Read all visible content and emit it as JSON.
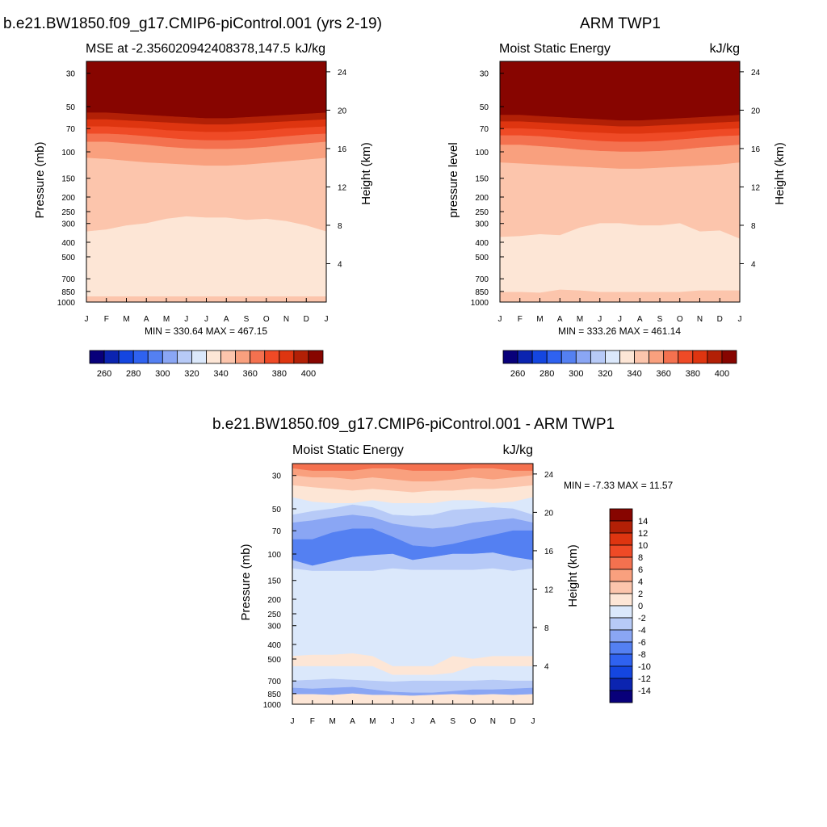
{
  "panels": {
    "model": {
      "title": "b.e21.BW1850.f09_g17.CMIP6-piControl.001 (yrs 2-19)",
      "left_string": "MSE at -2.356020942408378,147.5",
      "right_string": "kJ/kg",
      "min_max": "MIN = 330.64 MAX = 467.15"
    },
    "obs": {
      "title": "ARM TWP1",
      "left_string": "Moist Static Energy",
      "right_string": "kJ/kg",
      "min_max": "MIN = 333.26 MAX = 461.14"
    },
    "diff": {
      "title": "b.e21.BW1850.f09_g17.CMIP6-piControl.001 - ARM TWP1",
      "left_string": "Moist Static Energy",
      "right_string": "kJ/kg",
      "min_max": "MIN =  -7.33 MAX =  11.57"
    }
  },
  "chart_data": [
    {
      "type": "heatmap",
      "title": "b.e21.BW1850.f09_g17.CMIP6-piControl.001 (yrs 2-19)",
      "subtitle": "MSE at -2.356020942408378,147.5",
      "units": "kJ/kg",
      "xlabel": "",
      "ylabel": "Pressure (mb)",
      "y2label": "Height (km)",
      "x_ticks": [
        "J",
        "F",
        "M",
        "A",
        "M",
        "J",
        "J",
        "A",
        "S",
        "O",
        "N",
        "D",
        "J"
      ],
      "y_ticks": [
        30,
        50,
        70,
        100,
        150,
        200,
        250,
        300,
        400,
        500,
        700,
        850,
        1000
      ],
      "y2_ticks": [
        24,
        20,
        16,
        12,
        8,
        4
      ],
      "y_log": true,
      "y_range": [
        1000,
        25
      ],
      "levels": [
        260,
        270,
        280,
        290,
        300,
        310,
        320,
        330,
        340,
        350,
        360,
        370,
        380,
        390,
        400
      ],
      "palette": [
        "#08007a",
        "#0b24b0",
        "#1446e0",
        "#2f62f0",
        "#5480f2",
        "#8aa6f4",
        "#b7caf7",
        "#dbe8fb",
        "#fde6d6",
        "#fcc5ac",
        "#f9a07e",
        "#f4714f",
        "#ef4a26",
        "#de3510",
        "#b22006",
        "#870500"
      ],
      "colorbar_labels": [
        260,
        280,
        300,
        320,
        340,
        360,
        380,
        400
      ],
      "min": 330.64,
      "max": 467.15,
      "bands": [
        {
          "color": "#870500",
          "p": [
            55,
            55,
            56,
            57,
            58,
            59,
            60,
            60,
            59,
            58,
            57,
            56,
            55
          ]
        },
        {
          "color": "#b22006",
          "p": [
            61,
            61,
            62,
            63,
            64,
            65,
            66,
            66,
            65,
            64,
            63,
            62,
            61
          ]
        },
        {
          "color": "#de3510",
          "p": [
            68,
            68,
            69,
            70,
            72,
            73,
            74,
            74,
            73,
            72,
            70,
            69,
            68
          ]
        },
        {
          "color": "#ef4a26",
          "p": [
            76,
            76,
            77,
            79,
            81,
            83,
            84,
            84,
            83,
            81,
            79,
            77,
            76
          ]
        },
        {
          "color": "#f4714f",
          "p": [
            86,
            86,
            88,
            90,
            93,
            95,
            96,
            96,
            95,
            93,
            90,
            88,
            86
          ]
        },
        {
          "color": "#f9a07e",
          "p": [
            110,
            112,
            115,
            118,
            120,
            122,
            124,
            124,
            122,
            119,
            116,
            113,
            110
          ]
        },
        {
          "color": "#fcc5ac",
          "p": [
            340,
            330,
            310,
            300,
            280,
            270,
            275,
            275,
            285,
            280,
            290,
            310,
            340
          ]
        },
        {
          "color": "#fde6d6",
          "p": [
            920,
            920,
            920,
            920,
            920,
            920,
            920,
            920,
            920,
            920,
            920,
            920,
            920
          ]
        },
        {
          "color": "#fcc5ac",
          "p": [
            1000,
            1000,
            1000,
            1000,
            1000,
            1000,
            1000,
            1000,
            1000,
            1000,
            1000,
            1000,
            1000
          ]
        }
      ]
    },
    {
      "type": "heatmap",
      "title": "ARM TWP1",
      "subtitle": "Moist Static Energy",
      "units": "kJ/kg",
      "xlabel": "",
      "ylabel": "pressure level",
      "y2label": "Height (km)",
      "x_ticks": [
        "J",
        "F",
        "M",
        "A",
        "M",
        "J",
        "J",
        "A",
        "S",
        "O",
        "N",
        "D",
        "J"
      ],
      "y_ticks": [
        30,
        50,
        70,
        100,
        150,
        200,
        250,
        300,
        400,
        500,
        700,
        850,
        1000
      ],
      "y2_ticks": [
        24,
        20,
        16,
        12,
        8,
        4
      ],
      "y_log": true,
      "y_range": [
        1000,
        25
      ],
      "levels": [
        260,
        270,
        280,
        290,
        300,
        310,
        320,
        330,
        340,
        350,
        360,
        370,
        380,
        390,
        400
      ],
      "palette": [
        "#08007a",
        "#0b24b0",
        "#1446e0",
        "#2f62f0",
        "#5480f2",
        "#8aa6f4",
        "#b7caf7",
        "#dbe8fb",
        "#fde6d6",
        "#fcc5ac",
        "#f9a07e",
        "#f4714f",
        "#ef4a26",
        "#de3510",
        "#b22006",
        "#870500"
      ],
      "colorbar_labels": [
        260,
        280,
        300,
        320,
        340,
        360,
        380,
        400
      ],
      "min": 333.26,
      "max": 461.14,
      "bands": [
        {
          "color": "#870500",
          "p": [
            57,
            57,
            58,
            59,
            60,
            61,
            62,
            62,
            61,
            60,
            59,
            58,
            57
          ]
        },
        {
          "color": "#b22006",
          "p": [
            63,
            63,
            64,
            65,
            66,
            67,
            68,
            68,
            67,
            66,
            65,
            64,
            63
          ]
        },
        {
          "color": "#de3510",
          "p": [
            70,
            70,
            71,
            72,
            74,
            75,
            76,
            76,
            75,
            74,
            72,
            71,
            70
          ]
        },
        {
          "color": "#ef4a26",
          "p": [
            78,
            78,
            79,
            81,
            83,
            85,
            86,
            86,
            85,
            83,
            81,
            79,
            78
          ]
        },
        {
          "color": "#f4714f",
          "p": [
            90,
            90,
            92,
            94,
            97,
            99,
            100,
            100,
            99,
            97,
            94,
            92,
            90
          ]
        },
        {
          "color": "#f9a07e",
          "p": [
            118,
            120,
            122,
            124,
            126,
            128,
            130,
            130,
            128,
            126,
            124,
            122,
            118
          ]
        },
        {
          "color": "#fcc5ac",
          "p": [
            370,
            365,
            355,
            360,
            320,
            300,
            300,
            310,
            310,
            300,
            340,
            335,
            380
          ]
        },
        {
          "color": "#fde6d6",
          "p": [
            860,
            860,
            870,
            830,
            840,
            860,
            860,
            860,
            860,
            860,
            840,
            840,
            840
          ]
        },
        {
          "color": "#fcc5ac",
          "p": [
            1000,
            1000,
            1000,
            1000,
            1000,
            1000,
            1000,
            1000,
            1000,
            1000,
            1000,
            1000,
            1000
          ]
        }
      ]
    },
    {
      "type": "heatmap",
      "title": "b.e21.BW1850.f09_g17.CMIP6-piControl.001 - ARM TWP1",
      "subtitle": "Moist Static Energy",
      "units": "kJ/kg",
      "xlabel": "",
      "ylabel": "Pressure (mb)",
      "y2label": "Height (km)",
      "x_ticks": [
        "J",
        "F",
        "M",
        "A",
        "M",
        "J",
        "J",
        "A",
        "S",
        "O",
        "N",
        "D",
        "J"
      ],
      "y_ticks": [
        30,
        50,
        70,
        100,
        150,
        200,
        250,
        300,
        400,
        500,
        700,
        850,
        1000
      ],
      "y2_ticks": [
        24,
        20,
        16,
        12,
        8,
        4
      ],
      "y_log": true,
      "y_range": [
        1000,
        25
      ],
      "levels": [
        -14,
        -12,
        -10,
        -8,
        -6,
        -4,
        -2,
        0,
        2,
        4,
        6,
        8,
        10,
        12,
        14
      ],
      "palette": [
        "#08007a",
        "#0b24b0",
        "#1446e0",
        "#2f62f0",
        "#5480f2",
        "#8aa6f4",
        "#b7caf7",
        "#dbe8fb",
        "#fde6d6",
        "#fcc5ac",
        "#f9a07e",
        "#f4714f",
        "#ef4a26",
        "#de3510",
        "#b22006",
        "#870500"
      ],
      "colorbar_labels": [
        14,
        12,
        10,
        8,
        6,
        4,
        2,
        0,
        -2,
        -4,
        -6,
        -8,
        -10,
        -12,
        -14
      ],
      "min": -7.33,
      "max": 11.57,
      "bands": [
        {
          "color": "#f4714f",
          "p": [
            27,
            28,
            28,
            28,
            27,
            27,
            28,
            28,
            28,
            27,
            27,
            28,
            28
          ]
        },
        {
          "color": "#f9a07e",
          "p": [
            30,
            31,
            31,
            32,
            31,
            32,
            33,
            33,
            32,
            31,
            32,
            31,
            30
          ]
        },
        {
          "color": "#fcc5ac",
          "p": [
            35,
            36,
            37,
            38,
            37,
            38,
            39,
            38,
            38,
            37,
            37,
            36,
            35
          ]
        },
        {
          "color": "#fde6d6",
          "p": [
            42,
            45,
            46,
            46,
            44,
            46,
            46,
            46,
            44,
            44,
            46,
            45,
            42
          ]
        },
        {
          "color": "#dbe8fb",
          "p": [
            55,
            52,
            50,
            47,
            49,
            55,
            56,
            55,
            51,
            50,
            49,
            50,
            55
          ]
        },
        {
          "color": "#b7caf7",
          "p": [
            62,
            60,
            57,
            55,
            57,
            63,
            66,
            68,
            66,
            62,
            60,
            58,
            62
          ]
        },
        {
          "color": "#8aa6f4",
          "p": [
            80,
            80,
            72,
            68,
            68,
            77,
            88,
            90,
            86,
            80,
            75,
            70,
            70
          ]
        },
        {
          "color": "#5480f2",
          "p": [
            110,
            120,
            112,
            105,
            102,
            100,
            110,
            105,
            100,
            100,
            98,
            105,
            110
          ]
        },
        {
          "color": "#b7caf7",
          "p": [
            125,
            130,
            130,
            130,
            130,
            125,
            128,
            128,
            128,
            128,
            125,
            130,
            125
          ]
        },
        {
          "color": "#dbe8fb",
          "p": [
            480,
            470,
            470,
            460,
            480,
            560,
            560,
            560,
            480,
            500,
            480,
            480,
            480
          ]
        },
        {
          "color": "#fde6d6",
          "p": [
            560,
            560,
            560,
            560,
            560,
            640,
            640,
            640,
            620,
            560,
            560,
            560,
            560
          ]
        },
        {
          "color": "#dbe8fb",
          "p": [
            700,
            690,
            680,
            690,
            700,
            710,
            700,
            700,
            700,
            700,
            690,
            700,
            700
          ]
        },
        {
          "color": "#b7caf7",
          "p": [
            780,
            790,
            780,
            770,
            800,
            830,
            840,
            840,
            820,
            800,
            800,
            790,
            780
          ]
        },
        {
          "color": "#8aa6f4",
          "p": [
            860,
            860,
            870,
            850,
            870,
            870,
            880,
            870,
            860,
            870,
            860,
            870,
            860
          ]
        },
        {
          "color": "#fde6d6",
          "p": [
            1000,
            1000,
            1000,
            1000,
            1000,
            1000,
            1000,
            1000,
            1000,
            1000,
            1000,
            1000,
            1000
          ]
        }
      ]
    }
  ]
}
